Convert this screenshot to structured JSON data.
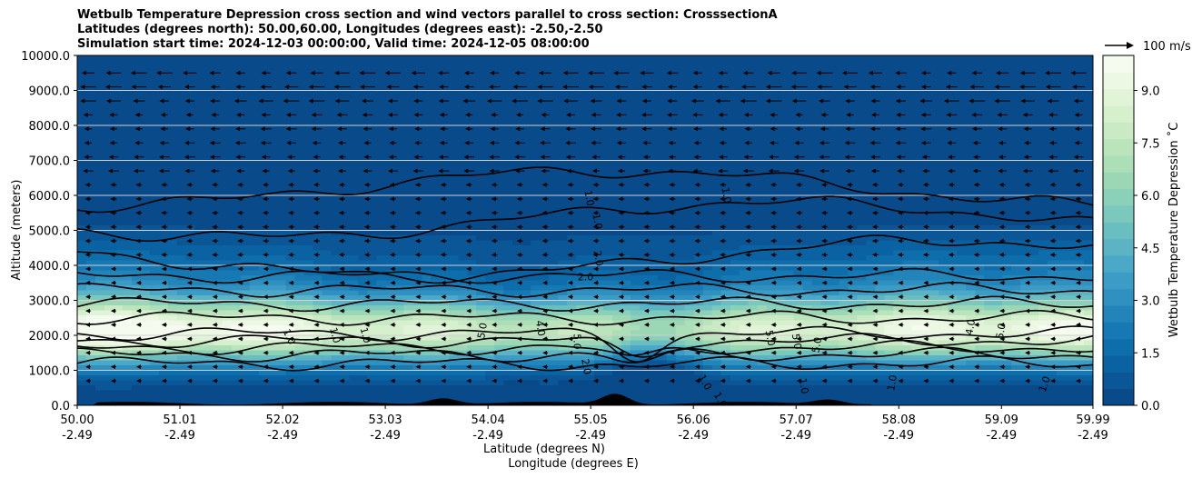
{
  "titles": [
    "Wetbulb Temperature Depression cross section and wind vectors parallel to cross section: CrosssectionA",
    "Latitudes (degrees north): 50.00,60.00, Longitudes (degrees east): -2.50,-2.50",
    "Simulation start time: 2024-12-03 00:00:00, Valid time: 2024-12-05 08:00:00"
  ],
  "chart_data": {
    "type": "heatmap",
    "ylabel": "Altitude (meters)",
    "xlabel_1": "Latitude (degrees N)",
    "xlabel_2": "Longitude (degrees E)",
    "ylim": [
      0,
      10000
    ],
    "xlim": [
      50.0,
      59.99
    ],
    "y_ticks": [
      "0.0",
      "1000.0",
      "2000.0",
      "3000.0",
      "4000.0",
      "5000.0",
      "6000.0",
      "7000.0",
      "8000.0",
      "9000.0",
      "10000.0"
    ],
    "x_ticks": [
      {
        "lat": "50.00",
        "lon": "-2.49",
        "value": 50.0
      },
      {
        "lat": "51.01",
        "lon": "-2.49",
        "value": 51.01
      },
      {
        "lat": "52.02",
        "lon": "-2.49",
        "value": 52.02
      },
      {
        "lat": "53.03",
        "lon": "-2.49",
        "value": 53.03
      },
      {
        "lat": "54.04",
        "lon": "-2.49",
        "value": 54.04
      },
      {
        "lat": "55.05",
        "lon": "-2.49",
        "value": 55.05
      },
      {
        "lat": "56.06",
        "lon": "-2.49",
        "value": 56.06
      },
      {
        "lat": "57.07",
        "lon": "-2.49",
        "value": 57.07
      },
      {
        "lat": "58.08",
        "lon": "-2.49",
        "value": 58.08
      },
      {
        "lat": "59.09",
        "lon": "-2.49",
        "value": 59.09
      },
      {
        "lat": "59.99",
        "lon": "-2.49",
        "value": 59.99
      }
    ],
    "colorbar": {
      "label": "Wetbulb Temperature Depression ˚C",
      "range": [
        0,
        10
      ],
      "ticks": [
        "0.0",
        "1.5",
        "3.0",
        "4.5",
        "6.0",
        "7.5",
        "9.0"
      ],
      "colors": [
        "#084a8a",
        "#0a5696",
        "#0b62a2",
        "#0e6dab",
        "#1779b4",
        "#2384ba",
        "#3090c0",
        "#3d9cc6",
        "#4ba8c8",
        "#5bb3c4",
        "#6bbec0",
        "#7bc8bc",
        "#8bd0b8",
        "#9cd7b5",
        "#acdeb8",
        "#bbe4bd",
        "#c9eac4",
        "#d6efcc",
        "#e2f4d8",
        "#ecf8e4",
        "#f5fbef"
      ]
    },
    "contour_labels": [
      {
        "text": "1.0",
        "x": 52.08,
        "y": 1950,
        "rot": 65
      },
      {
        "text": "1.0",
        "x": 52.53,
        "y": 2000,
        "rot": 75
      },
      {
        "text": "1.0",
        "x": 52.83,
        "y": 2000,
        "rot": 75
      },
      {
        "text": "5.0",
        "x": 53.99,
        "y": 2130,
        "rot": -80
      },
      {
        "text": "4.0",
        "x": 54.55,
        "y": 2200,
        "rot": 80
      },
      {
        "text": "5.0",
        "x": 54.91,
        "y": 1820,
        "rot": 90
      },
      {
        "text": "2.0",
        "x": 55.0,
        "y": 1100,
        "rot": 80
      },
      {
        "text": "1.0",
        "x": 55.03,
        "y": 5920,
        "rot": 80
      },
      {
        "text": "1.0",
        "x": 55.11,
        "y": 5250,
        "rot": 80
      },
      {
        "text": "2.0",
        "x": 55.12,
        "y": 4200,
        "rot": 80
      },
      {
        "text": "2.0",
        "x": 55.0,
        "y": 3650,
        "rot": 0
      },
      {
        "text": "1.0",
        "x": 56.38,
        "y": 6000,
        "rot": 80
      },
      {
        "text": "1.0",
        "x": 56.17,
        "y": 650,
        "rot": 60
      },
      {
        "text": "1.0",
        "x": 56.32,
        "y": 150,
        "rot": 60
      },
      {
        "text": "5.0",
        "x": 56.81,
        "y": 1920,
        "rot": 80
      },
      {
        "text": "5.0",
        "x": 57.07,
        "y": 1820,
        "rot": 80
      },
      {
        "text": "5.0",
        "x": 57.28,
        "y": 1720,
        "rot": -80
      },
      {
        "text": "1.0",
        "x": 57.14,
        "y": 550,
        "rot": 80
      },
      {
        "text": "1.0",
        "x": 58.02,
        "y": 640,
        "rot": -80
      },
      {
        "text": "4.0",
        "x": 58.79,
        "y": 2230,
        "rot": -80
      },
      {
        "text": "5.0",
        "x": 59.09,
        "y": 2120,
        "rot": -80
      },
      {
        "text": "1.0",
        "x": 59.52,
        "y": 600,
        "rot": -70
      }
    ],
    "wind_reference": {
      "label": "100 m/s"
    }
  }
}
